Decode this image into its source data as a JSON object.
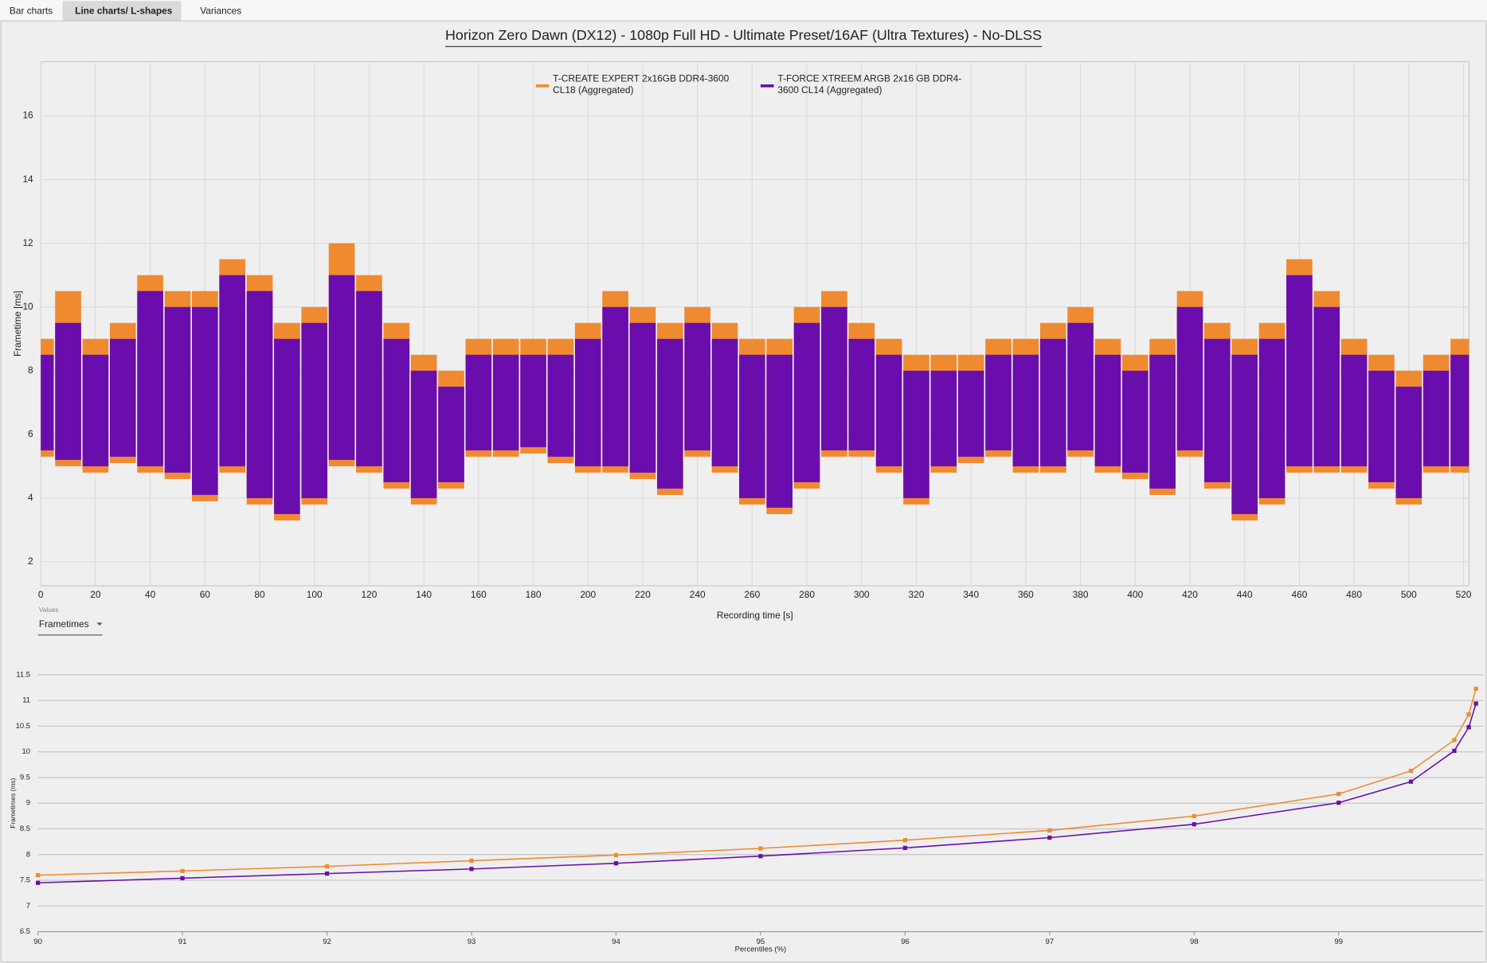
{
  "ui": {
    "tabs": [
      "Bar charts",
      "Line charts/ L-shapes",
      "Variances"
    ],
    "selector_label": "Values",
    "selector_value": "Frametimes"
  },
  "chart_data": [
    {
      "type": "band",
      "title": "Horizon Zero Dawn (DX12) - 1080p Full HD - Ultimate Preset/16AF (Ultra Textures) - No-DLSS",
      "x_label": "Recording time [s]",
      "y_label": "Frametime [ms]",
      "x": [
        0,
        10,
        20,
        30,
        40,
        50,
        60,
        70,
        80,
        90,
        100,
        110,
        120,
        130,
        140,
        150,
        160,
        170,
        180,
        190,
        200,
        210,
        220,
        230,
        240,
        250,
        260,
        270,
        280,
        290,
        300,
        310,
        320,
        330,
        340,
        350,
        360,
        370,
        380,
        390,
        400,
        410,
        420,
        430,
        440,
        450,
        460,
        470,
        480,
        490,
        500,
        510,
        520
      ],
      "series": [
        {
          "name": "T-CREATE EXPERT 2x16GB DDR4-3600 CL18 (Aggregated)",
          "color": "#f08a30",
          "low": [
            5.3,
            5.0,
            4.8,
            5.1,
            4.8,
            4.6,
            3.9,
            4.8,
            3.8,
            3.3,
            3.8,
            5.0,
            4.8,
            4.3,
            3.8,
            4.3,
            5.3,
            5.3,
            5.4,
            5.1,
            4.8,
            4.8,
            4.6,
            4.1,
            5.3,
            4.8,
            3.8,
            3.5,
            4.3,
            5.3,
            5.3,
            4.8,
            3.8,
            4.8,
            5.1,
            5.3,
            4.8,
            4.8,
            5.3,
            4.8,
            4.6,
            4.1,
            5.3,
            4.3,
            3.3,
            3.8,
            4.8,
            4.8,
            4.8,
            4.3,
            3.8,
            4.8,
            4.8
          ],
          "high": [
            9.0,
            10.5,
            9.0,
            9.5,
            11.0,
            10.5,
            10.5,
            11.5,
            11.0,
            9.5,
            10.0,
            12.0,
            11.0,
            9.5,
            8.5,
            8.0,
            9.0,
            9.0,
            9.0,
            9.0,
            9.5,
            10.5,
            10.0,
            9.5,
            10.0,
            9.5,
            9.0,
            9.0,
            10.0,
            10.5,
            9.5,
            9.0,
            8.5,
            8.5,
            8.5,
            9.0,
            9.0,
            9.5,
            10.0,
            9.0,
            8.5,
            9.0,
            10.5,
            9.5,
            9.0,
            9.5,
            11.5,
            10.5,
            9.0,
            8.5,
            8.0,
            8.5,
            9.0
          ]
        },
        {
          "name": "T-FORCE XTREEM ARGB 2x16 GB DDR4-3600 CL14 (Aggregated)",
          "color": "#6a0dad",
          "low": [
            5.5,
            5.2,
            5.0,
            5.3,
            5.0,
            4.8,
            4.1,
            5.0,
            4.0,
            3.5,
            4.0,
            5.2,
            5.0,
            4.5,
            4.0,
            4.5,
            5.5,
            5.5,
            5.6,
            5.3,
            5.0,
            5.0,
            4.8,
            4.3,
            5.5,
            5.0,
            4.0,
            3.7,
            4.5,
            5.5,
            5.5,
            5.0,
            4.0,
            5.0,
            5.3,
            5.5,
            5.0,
            5.0,
            5.5,
            5.0,
            4.8,
            4.3,
            5.5,
            4.5,
            3.5,
            4.0,
            5.0,
            5.0,
            5.0,
            4.5,
            4.0,
            5.0,
            5.0
          ],
          "high": [
            8.5,
            9.5,
            8.5,
            9.0,
            10.5,
            10.0,
            10.0,
            11.0,
            10.5,
            9.0,
            9.5,
            11.0,
            10.5,
            9.0,
            8.0,
            7.5,
            8.5,
            8.5,
            8.5,
            8.5,
            9.0,
            10.0,
            9.5,
            9.0,
            9.5,
            9.0,
            8.5,
            8.5,
            9.5,
            10.0,
            9.0,
            8.5,
            8.0,
            8.0,
            8.0,
            8.5,
            8.5,
            9.0,
            9.5,
            8.5,
            8.0,
            8.5,
            10.0,
            9.0,
            8.5,
            9.0,
            11.0,
            10.0,
            8.5,
            8.0,
            7.5,
            8.0,
            8.5
          ]
        }
      ],
      "xlim": [
        0,
        522
      ],
      "xticks": [
        0,
        20,
        40,
        60,
        80,
        100,
        120,
        140,
        160,
        180,
        200,
        220,
        240,
        260,
        280,
        300,
        320,
        340,
        360,
        380,
        400,
        420,
        440,
        460,
        480,
        500,
        520
      ],
      "ylim": [
        1.25,
        17.7
      ],
      "yticks": [
        2,
        4,
        6,
        8,
        10,
        12,
        14,
        16
      ],
      "grid": true,
      "legend": "top"
    },
    {
      "type": "line",
      "x_label": "Percentiles (%)",
      "y_label": "Frametimes (ms)",
      "x": [
        90,
        91,
        92,
        93,
        94,
        95,
        96,
        97,
        98,
        99,
        99.5,
        99.8,
        99.9,
        99.95
      ],
      "series": [
        {
          "name": "T-CREATE EXPERT 2x16GB DDR4-3600 CL18 (Aggregated)",
          "color": "#f08a30",
          "values": [
            7.6,
            7.68,
            7.77,
            7.88,
            7.99,
            8.12,
            8.28,
            8.47,
            8.75,
            9.18,
            9.63,
            10.23,
            10.73,
            11.23
          ]
        },
        {
          "name": "T-FORCE XTREEM ARGB 2x16 GB DDR4-3600 CL14 (Aggregated)",
          "color": "#6a0dad",
          "values": [
            7.45,
            7.54,
            7.63,
            7.72,
            7.83,
            7.97,
            8.13,
            8.33,
            8.59,
            9.01,
            9.42,
            10.02,
            10.48,
            10.94
          ]
        }
      ],
      "xlim": [
        90,
        100
      ],
      "xticks": [
        90,
        91,
        92,
        93,
        94,
        95,
        96,
        97,
        98,
        99
      ],
      "ylim": [
        6.5,
        11.5
      ],
      "yticks": [
        6.5,
        7,
        7.5,
        8,
        8.5,
        9,
        9.5,
        10,
        10.5,
        11,
        11.5
      ],
      "grid": true
    }
  ]
}
